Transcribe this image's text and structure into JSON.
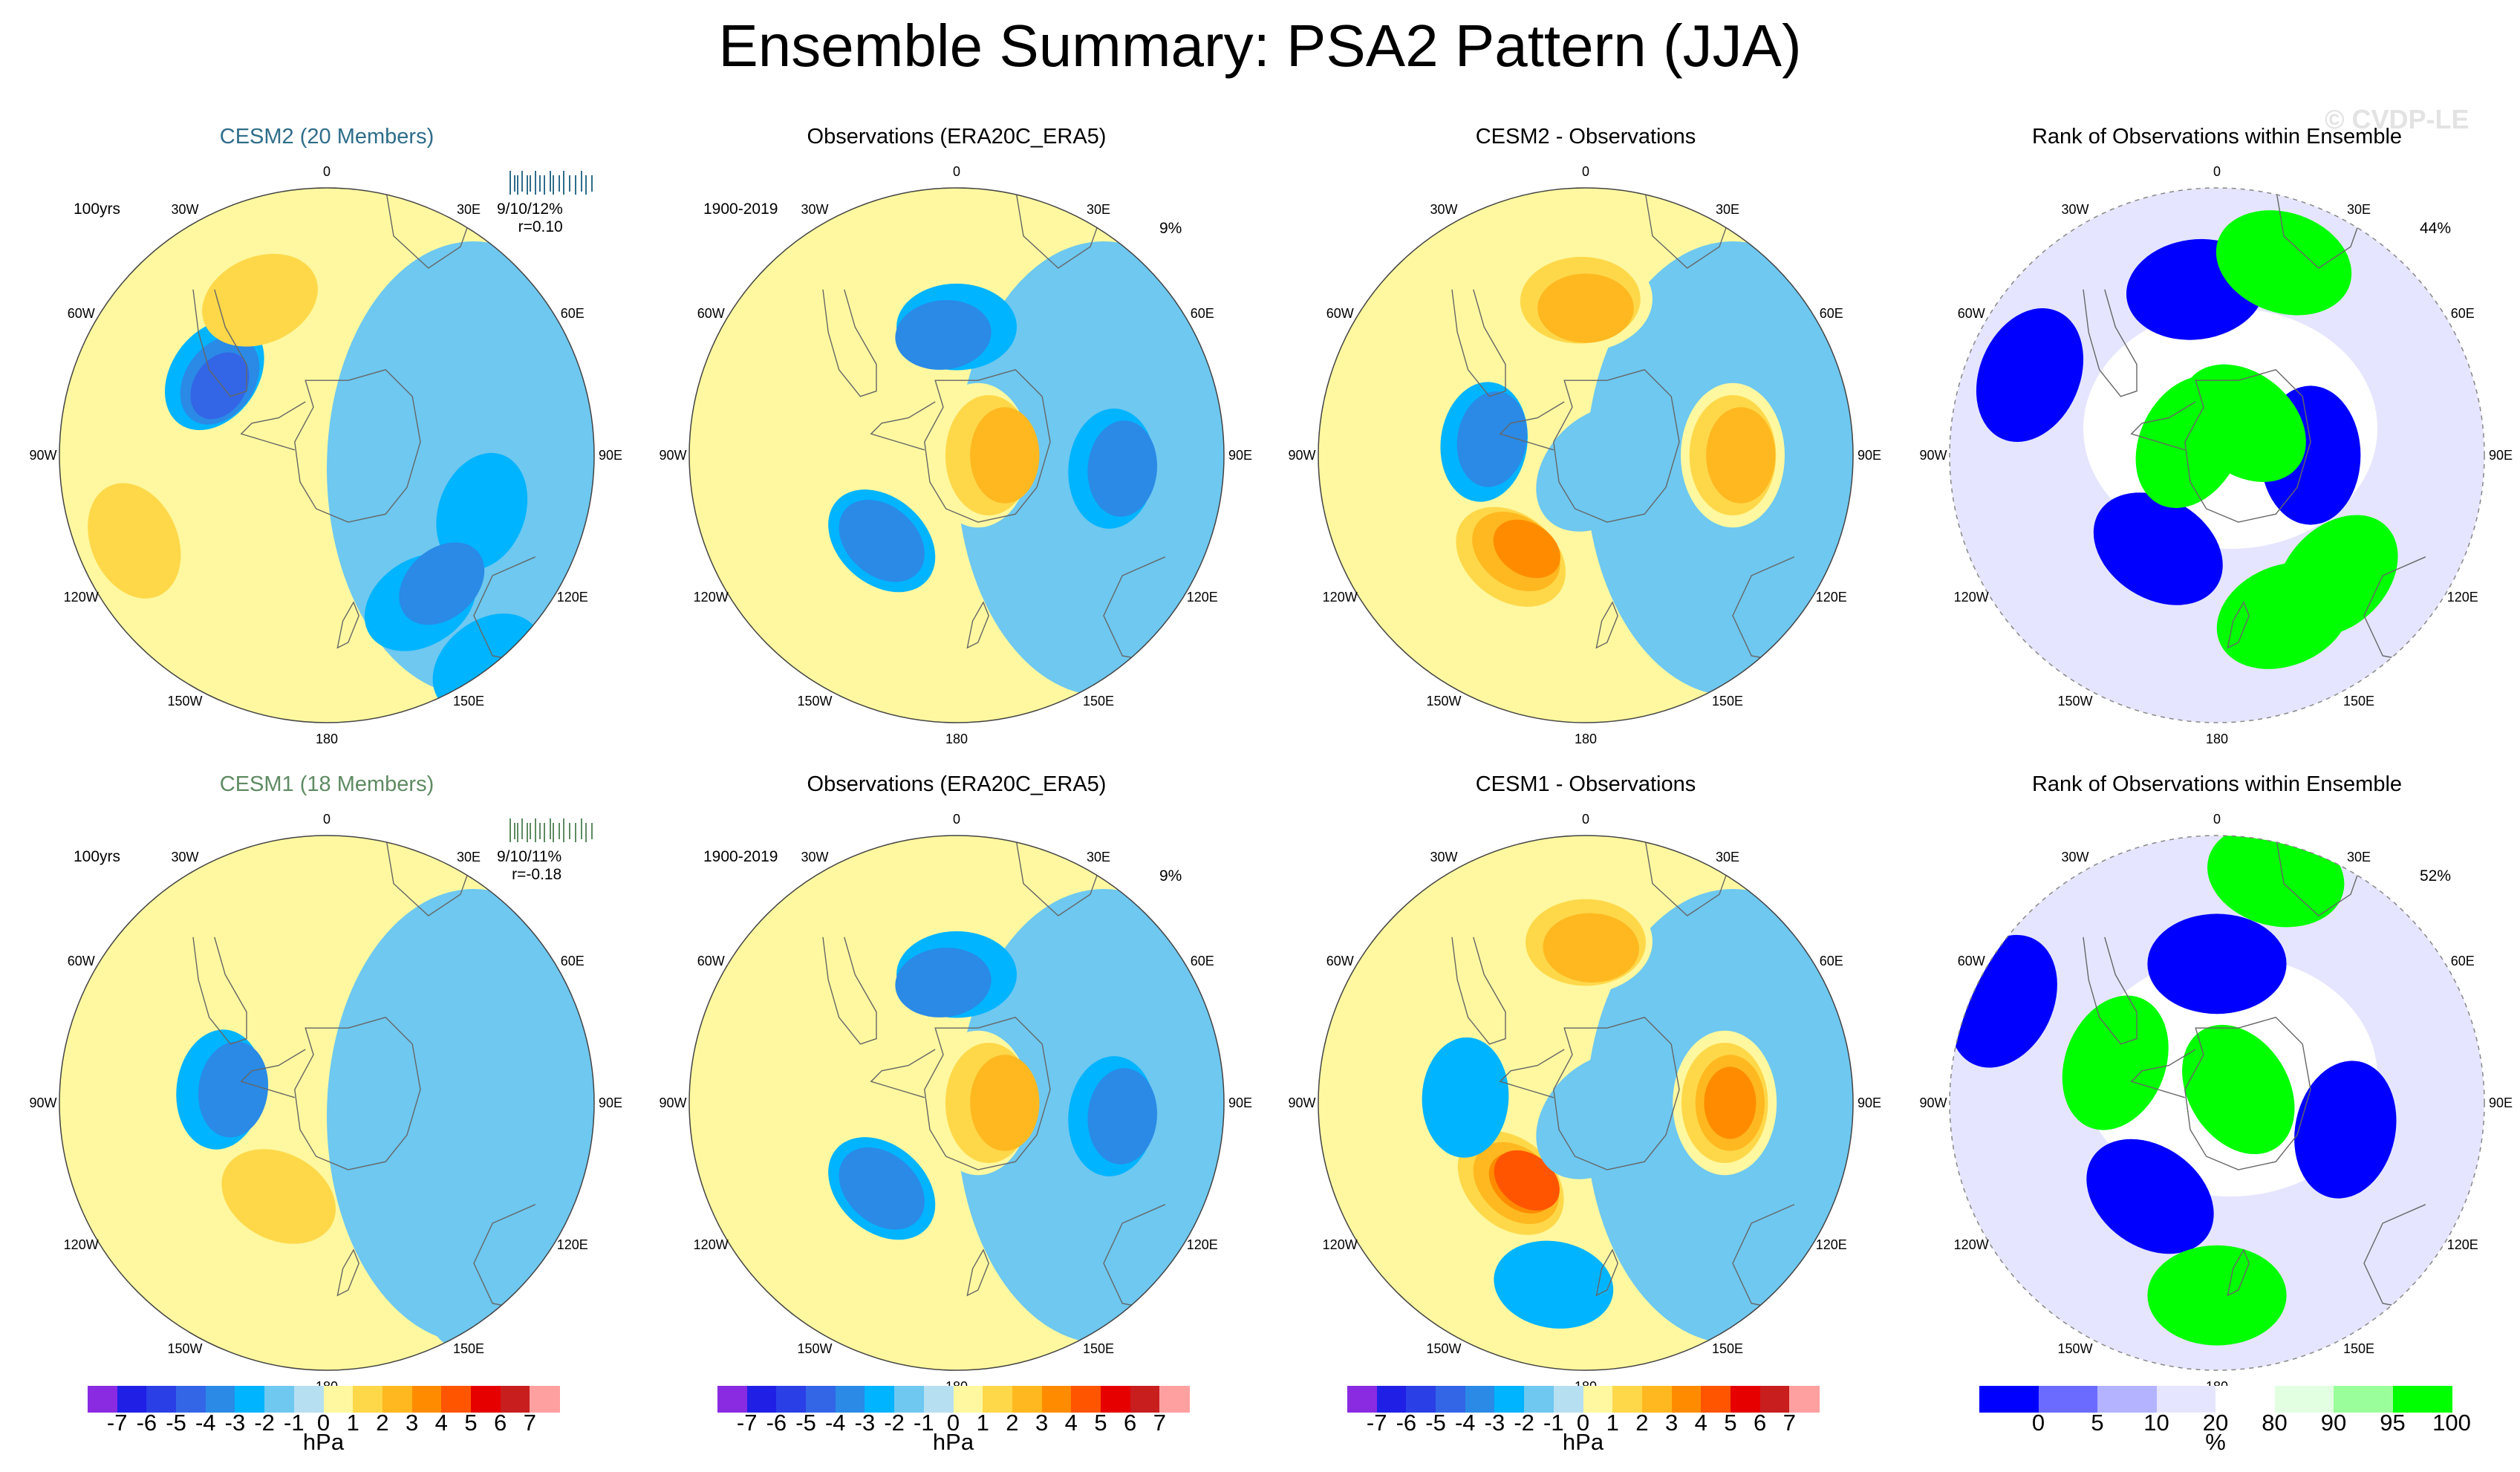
{
  "title": "Ensemble Summary: PSA2 Pattern (JJA)",
  "watermark": "© CVDP-LE",
  "chart_data": {
    "type": "heatmap",
    "projection": "south polar stereographic",
    "longitude_labels": [
      "0",
      "30E",
      "60E",
      "90E",
      "120E",
      "150E",
      "180",
      "150W",
      "120W",
      "90W",
      "60W",
      "30W"
    ],
    "panels": [
      {
        "id": "cesm2-ens",
        "title": "CESM2 (20 Members)",
        "title_color": "#2e6d8a",
        "period": "100yrs",
        "stats_top": "9/10/12%",
        "stats_bottom": "r=0.10",
        "spark_color": "#2e6d8a",
        "scale": "hPa",
        "blobs": [
          [
            0.58,
            0.21,
            -2
          ],
          [
            0.6,
            0.78,
            -2
          ],
          [
            -0.42,
            -0.3,
            -2
          ],
          [
            -0.4,
            -0.28,
            -3
          ],
          [
            -0.4,
            -0.26,
            -4
          ],
          [
            -0.72,
            0.32,
            2
          ],
          [
            -0.25,
            -0.58,
            2
          ],
          [
            0.35,
            0.55,
            -2
          ],
          [
            0.43,
            0.48,
            -3
          ]
        ]
      },
      {
        "id": "obs-1",
        "title": "Observations (ERA20C_ERA5)",
        "title_color": "#000000",
        "period": "1900-2019",
        "stats_top": "9%",
        "stats_bottom": "",
        "scale": "hPa",
        "blobs": [
          [
            0.0,
            -0.48,
            -2
          ],
          [
            -0.05,
            -0.45,
            -3
          ],
          [
            0.58,
            0.05,
            -2
          ],
          [
            0.62,
            0.05,
            -3
          ],
          [
            -0.28,
            0.32,
            -2
          ],
          [
            -0.28,
            0.32,
            -3
          ],
          [
            0.08,
            0.0,
            1
          ],
          [
            0.12,
            0.0,
            2
          ],
          [
            0.18,
            0.0,
            3
          ]
        ]
      },
      {
        "id": "cesm2-minus-obs",
        "title": "CESM2 - Observations",
        "title_color": "#000000",
        "period": "",
        "stats_top": "",
        "stats_bottom": "",
        "scale": "hPa",
        "blobs": [
          [
            -0.02,
            -0.58,
            1
          ],
          [
            -0.02,
            -0.58,
            2
          ],
          [
            0.0,
            -0.55,
            3
          ],
          [
            0.55,
            0.0,
            1
          ],
          [
            0.55,
            0.0,
            2
          ],
          [
            0.58,
            0.0,
            3
          ],
          [
            -0.3,
            0.38,
            1
          ],
          [
            -0.28,
            0.38,
            2
          ],
          [
            -0.26,
            0.36,
            3
          ],
          [
            -0.22,
            0.35,
            4
          ],
          [
            -0.38,
            -0.05,
            -2
          ],
          [
            -0.35,
            -0.06,
            -3
          ],
          [
            0.05,
            0.05,
            -1
          ]
        ]
      },
      {
        "id": "rank-1",
        "title": "Rank of Observations within Ensemble",
        "title_color": "#000000",
        "period": "",
        "stats_top": "44%",
        "stats_bottom": "",
        "scale": "rank",
        "blobs": [
          [
            -0.08,
            -0.62,
            0
          ],
          [
            0.35,
            0.0,
            0
          ],
          [
            -0.22,
            0.35,
            0
          ],
          [
            0.25,
            -0.72,
            100
          ],
          [
            0.1,
            -0.12,
            100
          ],
          [
            -0.1,
            -0.05,
            100
          ],
          [
            0.25,
            0.6,
            100
          ],
          [
            0.45,
            0.45,
            100
          ],
          [
            -0.7,
            -0.3,
            0
          ]
        ]
      },
      {
        "id": "cesm1-ens",
        "title": "CESM1 (18 Members)",
        "title_color": "#5e8b62",
        "period": "100yrs",
        "stats_top": "9/10/11%",
        "stats_bottom": "r=-0.18",
        "spark_color": "#5e8b62",
        "scale": "hPa",
        "blobs": [
          [
            0.58,
            0.3,
            -1
          ],
          [
            0.62,
            0.7,
            -1
          ],
          [
            -0.4,
            -0.05,
            -2
          ],
          [
            -0.35,
            -0.05,
            -3
          ],
          [
            -0.18,
            0.35,
            2
          ]
        ]
      },
      {
        "id": "obs-2",
        "title": "Observations (ERA20C_ERA5)",
        "title_color": "#000000",
        "period": "1900-2019",
        "stats_top": "9%",
        "stats_bottom": "",
        "scale": "hPa",
        "blobs": [
          [
            0.0,
            -0.48,
            -2
          ],
          [
            -0.05,
            -0.45,
            -3
          ],
          [
            0.58,
            0.05,
            -2
          ],
          [
            0.62,
            0.05,
            -3
          ],
          [
            -0.28,
            0.32,
            -2
          ],
          [
            -0.28,
            0.32,
            -3
          ],
          [
            0.08,
            0.0,
            1
          ],
          [
            0.12,
            0.0,
            2
          ],
          [
            0.18,
            0.0,
            3
          ]
        ]
      },
      {
        "id": "cesm1-minus-obs",
        "title": "CESM1 - Observations",
        "title_color": "#000000",
        "period": "",
        "stats_top": "",
        "stats_bottom": "",
        "scale": "hPa",
        "blobs": [
          [
            -0.02,
            -0.6,
            1
          ],
          [
            0.0,
            -0.6,
            2
          ],
          [
            0.02,
            -0.58,
            3
          ],
          [
            0.52,
            0.0,
            1
          ],
          [
            0.52,
            0.0,
            2
          ],
          [
            0.54,
            0.0,
            3
          ],
          [
            0.54,
            0.0,
            4
          ],
          [
            -0.3,
            0.3,
            1
          ],
          [
            -0.28,
            0.3,
            2
          ],
          [
            -0.26,
            0.3,
            3
          ],
          [
            -0.24,
            0.3,
            4
          ],
          [
            -0.22,
            0.29,
            5
          ],
          [
            -0.12,
            0.68,
            -2
          ],
          [
            -0.45,
            -0.02,
            -2
          ],
          [
            0.05,
            0.05,
            -1
          ]
        ]
      },
      {
        "id": "rank-2",
        "title": "Rank of Observations within Ensemble",
        "title_color": "#000000",
        "period": "",
        "stats_top": "52%",
        "stats_bottom": "",
        "scale": "rank",
        "blobs": [
          [
            0.0,
            -0.52,
            0
          ],
          [
            0.48,
            0.1,
            0
          ],
          [
            -0.25,
            0.35,
            0
          ],
          [
            0.0,
            0.72,
            100
          ],
          [
            0.08,
            -0.05,
            100
          ],
          [
            -0.38,
            -0.15,
            100
          ],
          [
            0.22,
            -0.85,
            100
          ],
          [
            -0.8,
            -0.38,
            0
          ]
        ]
      }
    ],
    "colorbars": [
      {
        "id": "hpa-1",
        "unit": "hPa",
        "scale": "hPa",
        "ticks": [
          "-7",
          "-6",
          "-5",
          "-4",
          "-3",
          "-2",
          "-1",
          "0",
          "1",
          "2",
          "3",
          "4",
          "5",
          "6",
          "7"
        ]
      },
      {
        "id": "hpa-2",
        "unit": "hPa",
        "scale": "hPa",
        "ticks": [
          "-7",
          "-6",
          "-5",
          "-4",
          "-3",
          "-2",
          "-1",
          "0",
          "1",
          "2",
          "3",
          "4",
          "5",
          "6",
          "7"
        ]
      },
      {
        "id": "hpa-3",
        "unit": "hPa",
        "scale": "hPa",
        "ticks": [
          "-7",
          "-6",
          "-5",
          "-4",
          "-3",
          "-2",
          "-1",
          "0",
          "1",
          "2",
          "3",
          "4",
          "5",
          "6",
          "7"
        ]
      },
      {
        "id": "rank",
        "unit": "%",
        "scale": "rank",
        "ticks": [
          "0",
          "5",
          "10",
          "20",
          "80",
          "90",
          "95",
          "100"
        ]
      }
    ],
    "palettes": {
      "hPa": {
        "levels": [
          -7,
          -6,
          -5,
          -4,
          -3,
          -2,
          -1,
          0,
          1,
          2,
          3,
          4,
          5,
          6,
          7,
          8
        ],
        "colors": [
          "#8a2be2",
          "#1f1fe6",
          "#2a3fe6",
          "#3366e6",
          "#2a8ae6",
          "#00b4ff",
          "#6ec8f0",
          "#b7dff2",
          "#fff8a0",
          "#ffd84a",
          "#ffb820",
          "#ff8c00",
          "#ff5500",
          "#e60000",
          "#c81e1e",
          "#ffa0a0"
        ]
      },
      "rank": {
        "levels": [
          0,
          5,
          10,
          20,
          80,
          90,
          95,
          100
        ],
        "colors": [
          "#0000ff",
          "#6b6bff",
          "#b3b3ff",
          "#e5e5ff",
          "#ffffff",
          "#e2ffe2",
          "#9aff9a",
          "#00ff00"
        ]
      }
    }
  }
}
